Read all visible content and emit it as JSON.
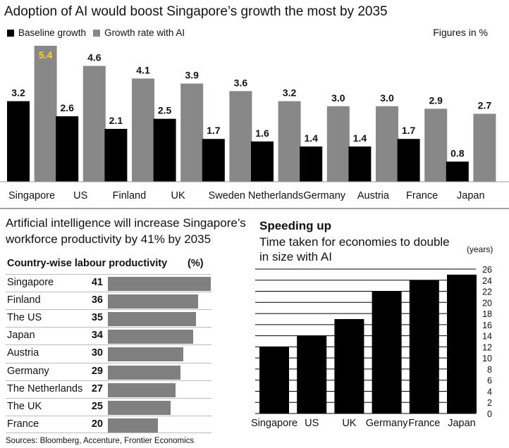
{
  "colors": {
    "baseline": "#000000",
    "ai": "#888888",
    "bar_gray": "#808080",
    "text": "#111111"
  },
  "top": {
    "title": "Adoption of AI would boost Singapore’s growth the most by 2035",
    "legend_baseline": "Baseline growth",
    "legend_ai": "Growth rate with AI",
    "units_note": "Figures in %"
  },
  "mid": {
    "title_line1": "Artificial intelligence will increase Singapore’s",
    "title_line2": "workforce productivity by 41% by 2035",
    "table_header": "Country-wise labour productivity",
    "table_unit": "(%)"
  },
  "right": {
    "title": "Speeding up",
    "subtitle_line1": "Time taken for economies to double",
    "subtitle_line2": "in size with AI",
    "units": "(years)"
  },
  "source": "Sources: Bloomberg, Accenture, Frontier Economics",
  "chart_data": [
    {
      "type": "bar",
      "title": "Adoption of AI would boost Singapore’s growth the most by 2035",
      "categories": [
        "Singapore",
        "US",
        "Finland",
        "UK",
        "Sweden",
        "Netherlands",
        "Germany",
        "Austria",
        "France",
        "Japan"
      ],
      "series": [
        {
          "name": "Baseline growth",
          "values": [
            3.2,
            2.6,
            2.1,
            2.5,
            1.7,
            1.6,
            1.4,
            1.4,
            1.7,
            0.8
          ]
        },
        {
          "name": "Growth rate with AI",
          "values": [
            5.4,
            4.6,
            4.1,
            3.9,
            3.6,
            3.2,
            3.0,
            3.0,
            2.9,
            2.7
          ]
        }
      ],
      "value_labels": [
        [
          "3.2",
          "2.6",
          "2.1",
          "2.5",
          "1.7",
          "1.6",
          "1.4",
          "1.4",
          "1.7",
          "0.8"
        ],
        [
          "5.4",
          "4.6",
          "4.1",
          "3.9",
          "3.6",
          "3.2",
          "3.0",
          "3.0",
          "2.9",
          "2.7"
        ]
      ],
      "ylim": [
        0,
        5.4
      ]
    },
    {
      "type": "bar",
      "orientation": "horizontal",
      "title": "Country-wise labour productivity",
      "categories": [
        "Singapore",
        "Finland",
        "The US",
        "Japan",
        "Austria",
        "Germany",
        "The Netherlands",
        "The UK",
        "France"
      ],
      "values": [
        41,
        36,
        35,
        34,
        30,
        29,
        27,
        25,
        20
      ],
      "value_labels": [
        "41",
        "36",
        "35",
        "34",
        "30",
        "29",
        "27",
        "25",
        "20"
      ],
      "xlim": [
        0,
        41
      ]
    },
    {
      "type": "bar",
      "title": "Time taken for economies to double in size with AI",
      "categories": [
        "Singapore",
        "US",
        "UK",
        "Germany",
        "France",
        "Japan"
      ],
      "values": [
        12,
        14,
        17,
        22,
        24,
        25
      ],
      "ylabel": "(years)",
      "ylim": [
        0,
        26
      ],
      "yticks": [
        "0",
        "2",
        "4",
        "6",
        "8",
        "10",
        "12",
        "14",
        "16",
        "18",
        "20",
        "22",
        "24",
        "26"
      ]
    }
  ]
}
